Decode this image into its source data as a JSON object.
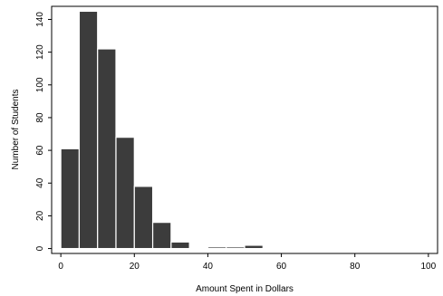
{
  "chart_data": {
    "type": "bar",
    "title": "",
    "xlabel": "Amount Spent in Dollars",
    "ylabel": "Number of Students",
    "xlim": [
      -2.5,
      102.5
    ],
    "ylim": [
      -3,
      148
    ],
    "x_ticks": [
      0,
      20,
      40,
      60,
      80,
      100
    ],
    "y_ticks": [
      0,
      20,
      40,
      60,
      80,
      100,
      120,
      140
    ],
    "bin_width": 5,
    "bins": [
      {
        "start": 0,
        "end": 5,
        "value": 61
      },
      {
        "start": 5,
        "end": 10,
        "value": 145
      },
      {
        "start": 10,
        "end": 15,
        "value": 122
      },
      {
        "start": 15,
        "end": 20,
        "value": 68
      },
      {
        "start": 20,
        "end": 25,
        "value": 38
      },
      {
        "start": 25,
        "end": 30,
        "value": 16
      },
      {
        "start": 30,
        "end": 35,
        "value": 4
      },
      {
        "start": 35,
        "end": 40,
        "value": 0
      },
      {
        "start": 40,
        "end": 45,
        "value": 1
      },
      {
        "start": 45,
        "end": 50,
        "value": 1
      },
      {
        "start": 50,
        "end": 55,
        "value": 2
      },
      {
        "start": 55,
        "end": 60,
        "value": 0
      },
      {
        "start": 60,
        "end": 65,
        "value": 0
      },
      {
        "start": 65,
        "end": 70,
        "value": 0
      },
      {
        "start": 70,
        "end": 75,
        "value": 0
      },
      {
        "start": 75,
        "end": 80,
        "value": 0
      },
      {
        "start": 80,
        "end": 85,
        "value": 0
      },
      {
        "start": 85,
        "end": 90,
        "value": 0
      },
      {
        "start": 90,
        "end": 95,
        "value": 0
      },
      {
        "start": 95,
        "end": 100,
        "value": 0
      }
    ],
    "grid": false,
    "legend": "none",
    "bar_color": "#3c3c3c",
    "bar_edge_color": "#ffffff"
  }
}
